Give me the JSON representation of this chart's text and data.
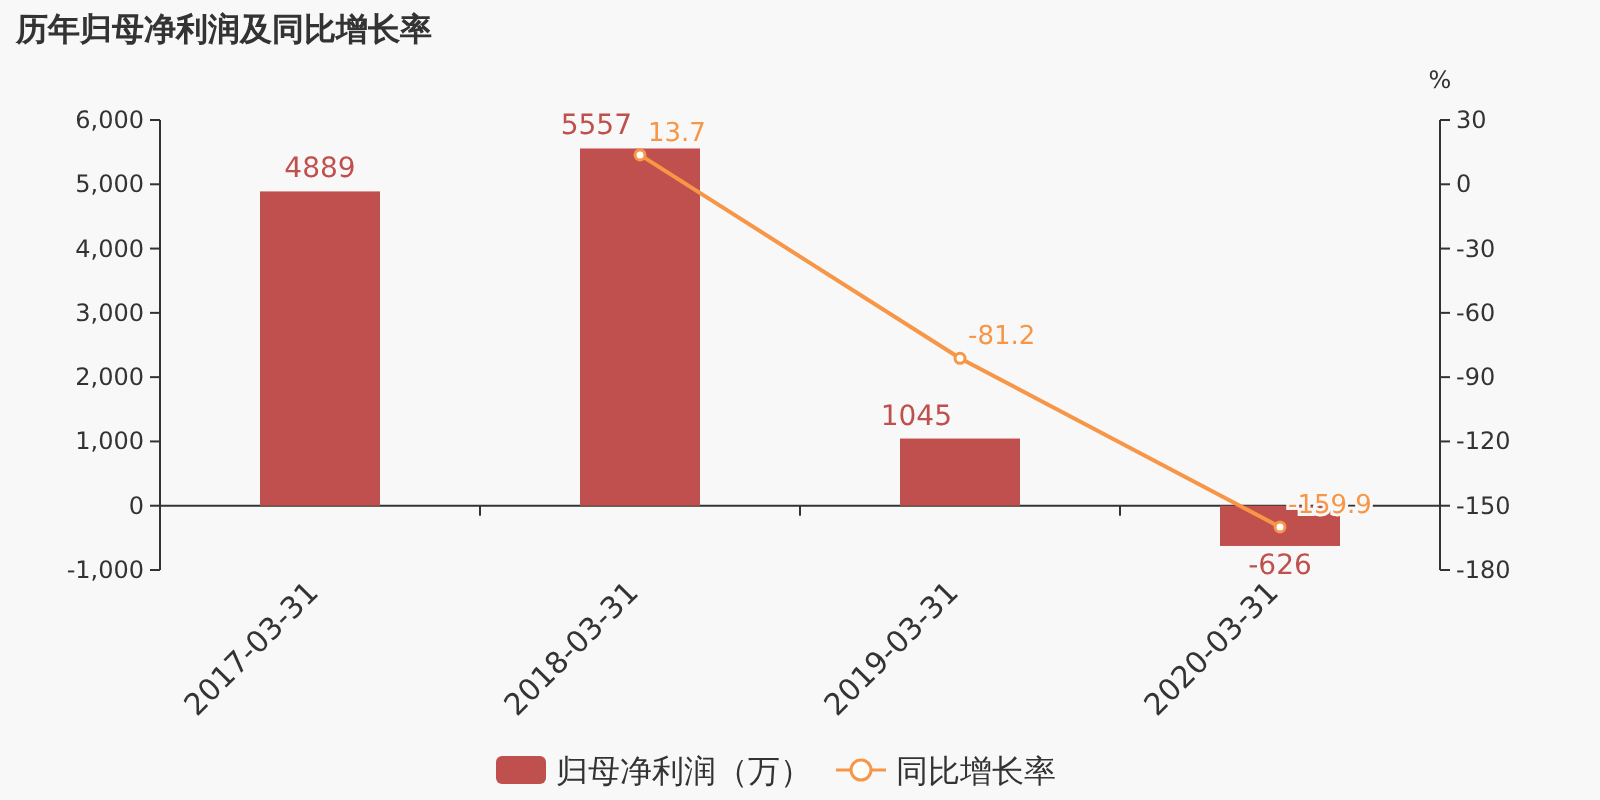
{
  "chart_data": {
    "type": "bar",
    "title": "历年归母净利润及同比增长率",
    "categories": [
      "2017-03-31",
      "2018-03-31",
      "2019-03-31",
      "2020-03-31"
    ],
    "series": [
      {
        "name": "归母净利润（万）",
        "color": "#c0504d",
        "values": [
          4889,
          5557,
          1045,
          -626
        ]
      },
      {
        "name": "同比增长率",
        "type": "line",
        "axis": "y2",
        "color": "#f79646",
        "values": [
          null,
          13.7,
          -81.2,
          -159.9
        ]
      }
    ],
    "ylim": [
      -1000,
      6000
    ],
    "yticks": [
      {
        "value": -1000,
        "label": "-1,000"
      },
      0,
      {
        "value": 1000,
        "label": "1,000"
      },
      {
        "value": 2000,
        "label": "2,000"
      },
      {
        "value": 3000,
        "label": "3,000"
      },
      {
        "value": 4000,
        "label": "4,000"
      },
      {
        "value": 5000,
        "label": "5,000"
      },
      {
        "value": 6000,
        "label": "6,000"
      }
    ],
    "y2lim": [
      -180,
      30
    ],
    "y2ticks": [
      -180,
      -150,
      -120,
      -90,
      -60,
      -30,
      0,
      30
    ],
    "y2label": "%",
    "data_labels": true,
    "legend": "bottom",
    "marker": "circle"
  }
}
